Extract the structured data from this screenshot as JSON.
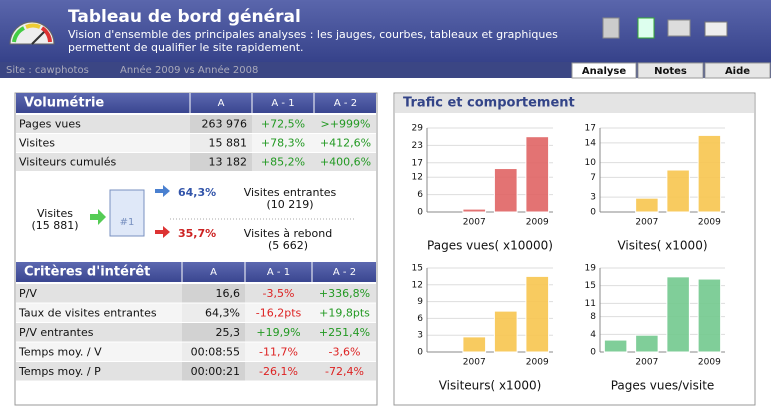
{
  "header": {
    "title": "Tableau de bord général",
    "subtitle": [
      "Vision d'ensemble des principales analyses : les jauges, courbes, tableaux et graphiques",
      "permettent de qualifier le site rapidement."
    ],
    "site": "Site : cawphotos",
    "period": "Année 2009 vs Année 2008"
  },
  "tabs": [
    "Analyse",
    "Notes",
    "Aide"
  ],
  "volumetrie": {
    "title": "Volumétrie",
    "columns": [
      "A",
      "A - 1",
      "A - 2"
    ],
    "rows": [
      [
        "Pages vues",
        "263 976",
        "+72,5%",
        ">+999%"
      ],
      [
        "Visites",
        "15 881",
        "+78,3%",
        "+412,6%"
      ],
      [
        "Visiteurs cumulés",
        "13 182",
        "+85,2%",
        "+400,6%"
      ]
    ]
  },
  "flux": {
    "source": {
      "label": "Visites",
      "value": "(15 881)"
    },
    "entrantes": {
      "pct": "64,3%",
      "label": "Visites entrantes",
      "value": "(10 219)"
    },
    "rebond": {
      "pct": "35,7%",
      "label": "Visites à rebond",
      "value": "(5 662)"
    }
  },
  "criteres": {
    "title": "Critères d'intérêt",
    "columns": [
      "A",
      "A - 1",
      "A - 2"
    ],
    "rows": [
      [
        "P/V",
        "16,6",
        "-3,5%",
        "+336,8%"
      ],
      [
        "Taux de visites entrantes",
        "64,3%",
        "-16,2pts",
        "+19,8pts"
      ],
      [
        "P/V entrantes",
        "25,3",
        "+19,9%",
        "+251,4%"
      ],
      [
        "Temps moy. / V",
        "00:08:55",
        "-11,7%",
        "-3,6%"
      ],
      [
        "Temps moy. / P",
        "00:00:21",
        "-26,1%",
        "-72,4%"
      ]
    ]
  },
  "trafic": {
    "title": "Trafic et comportement",
    "charts": [
      {
        "type": "bar",
        "title": "Pages vues( x10000)",
        "categories": [
          null,
          "2007",
          null,
          "2009"
        ],
        "values": [
          null,
          1,
          15,
          26
        ],
        "color": "#e06464",
        "ylim": [
          0,
          29
        ],
        "yticks": [
          0,
          6,
          12,
          17,
          23,
          29
        ]
      },
      {
        "type": "bar",
        "title": "Visites( x1000)",
        "categories": [
          null,
          "2007",
          null,
          "2009"
        ],
        "values": [
          null,
          2.8,
          8.5,
          15.5
        ],
        "color": "#f7c54f",
        "ylim": [
          0,
          17
        ],
        "yticks": [
          0,
          3,
          7,
          10,
          14,
          17
        ]
      },
      {
        "type": "bar",
        "title": "Visiteurs( x1000)",
        "categories": [
          null,
          "2007",
          null,
          "2009"
        ],
        "values": [
          null,
          2.7,
          7.3,
          13.5
        ],
        "color": "#f7c54f",
        "ylim": [
          0,
          15
        ],
        "yticks": [
          0,
          3,
          6,
          9,
          12,
          15
        ]
      },
      {
        "type": "bar",
        "title": "Pages vues/visite",
        "categories": [
          null,
          "2007",
          null,
          "2009"
        ],
        "values": [
          2.7,
          3.8,
          17,
          16.5
        ],
        "color": "#72c98e",
        "ylim": [
          0,
          19
        ],
        "yticks": [
          0,
          4,
          8,
          11,
          15,
          19
        ]
      }
    ]
  }
}
